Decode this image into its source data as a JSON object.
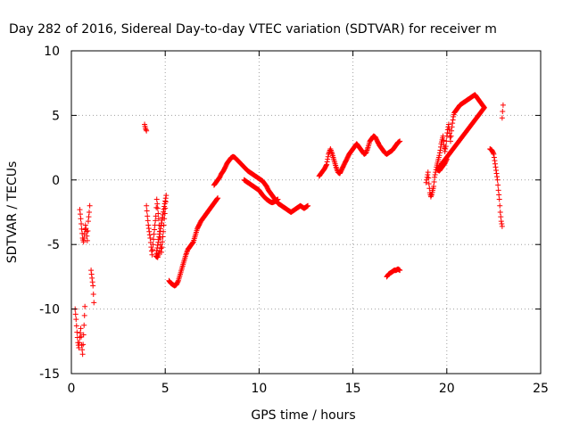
{
  "chart_data": {
    "type": "scatter",
    "title": "Day 282 of 2016, Sidereal Day-to-day VTEC variation (SDTVAR) for receiver m",
    "xlabel": "GPS time / hours",
    "ylabel": "SDTVAR / TECUs",
    "xlim": [
      0,
      25
    ],
    "ylim": [
      -15,
      10
    ],
    "xticks": [
      0,
      5,
      10,
      15,
      20,
      25
    ],
    "yticks": [
      -15,
      -10,
      -5,
      0,
      5,
      10
    ],
    "xtick_labels": [
      "0",
      "5",
      "10",
      "15",
      "20",
      "25"
    ],
    "ytick_labels": [
      "-15",
      "-10",
      "-5",
      "0",
      "5",
      "10"
    ],
    "grid": true,
    "marker": "plus",
    "color": "#ff0000",
    "segments": [
      [
        [
          0.2,
          -10.0
        ],
        [
          0.25,
          -10.8
        ],
        [
          0.3,
          -11.8
        ],
        [
          0.35,
          -12.6
        ],
        [
          0.4,
          -13.0
        ],
        [
          0.45,
          -12.2
        ],
        [
          0.5,
          -11.5
        ],
        [
          0.55,
          -12.8
        ],
        [
          0.6,
          -13.5
        ],
        [
          0.65,
          -12.0
        ],
        [
          0.7,
          -10.5
        ],
        [
          0.72,
          -9.8
        ]
      ],
      [
        [
          0.45,
          -2.3
        ],
        [
          0.5,
          -3.0
        ],
        [
          0.55,
          -3.8
        ],
        [
          0.6,
          -4.5
        ],
        [
          0.65,
          -4.8
        ],
        [
          0.7,
          -4.2
        ],
        [
          0.75,
          -3.5
        ],
        [
          0.8,
          -4.0
        ],
        [
          0.85,
          -4.7
        ],
        [
          0.9,
          -3.2
        ],
        [
          0.95,
          -2.5
        ],
        [
          0.98,
          -2.0
        ]
      ],
      [
        [
          1.05,
          -7.0
        ],
        [
          1.1,
          -7.6
        ],
        [
          1.15,
          -8.2
        ],
        [
          1.2,
          -9.5
        ]
      ],
      [
        [
          3.9,
          4.3
        ],
        [
          3.95,
          4.0
        ],
        [
          4.0,
          3.8
        ]
      ],
      [
        [
          4.0,
          -2.0
        ],
        [
          4.05,
          -2.8
        ],
        [
          4.1,
          -3.5
        ],
        [
          4.15,
          -4.0
        ],
        [
          4.2,
          -4.5
        ],
        [
          4.25,
          -5.2
        ],
        [
          4.3,
          -5.8
        ],
        [
          4.35,
          -5.0
        ],
        [
          4.4,
          -4.2
        ],
        [
          4.45,
          -3.5
        ],
        [
          4.5,
          -2.8
        ],
        [
          4.55,
          -1.5
        ],
        [
          4.6,
          -2.2
        ],
        [
          4.65,
          -3.0
        ],
        [
          4.7,
          -4.0
        ],
        [
          4.75,
          -5.0
        ],
        [
          4.8,
          -5.6
        ],
        [
          4.85,
          -4.8
        ],
        [
          4.9,
          -4.0
        ],
        [
          4.95,
          -3.0
        ],
        [
          5.0,
          -2.2
        ],
        [
          5.05,
          -1.2
        ],
        [
          4.5,
          -5.9
        ],
        [
          4.6,
          -6.0
        ],
        [
          4.7,
          -5.5
        ]
      ],
      [
        [
          5.2,
          -7.8
        ],
        [
          5.3,
          -8.0
        ],
        [
          5.4,
          -8.1
        ],
        [
          5.5,
          -8.2
        ],
        [
          5.6,
          -8.1
        ],
        [
          5.7,
          -7.8
        ],
        [
          5.8,
          -7.3
        ],
        [
          5.9,
          -6.8
        ],
        [
          6.0,
          -6.3
        ],
        [
          6.1,
          -5.8
        ],
        [
          6.2,
          -5.4
        ],
        [
          6.3,
          -5.2
        ],
        [
          6.4,
          -5.0
        ],
        [
          6.5,
          -4.8
        ],
        [
          6.6,
          -4.3
        ],
        [
          6.7,
          -3.8
        ],
        [
          6.8,
          -3.5
        ],
        [
          6.9,
          -3.2
        ],
        [
          7.0,
          -3.0
        ],
        [
          7.1,
          -2.8
        ],
        [
          7.2,
          -2.6
        ],
        [
          7.3,
          -2.4
        ],
        [
          7.4,
          -2.2
        ],
        [
          7.5,
          -2.0
        ],
        [
          7.6,
          -1.8
        ],
        [
          7.7,
          -1.6
        ],
        [
          7.8,
          -1.4
        ]
      ],
      [
        [
          7.6,
          -0.4
        ],
        [
          7.7,
          -0.2
        ],
        [
          7.8,
          0.0
        ],
        [
          7.9,
          0.2
        ],
        [
          8.0,
          0.5
        ],
        [
          8.1,
          0.7
        ],
        [
          8.2,
          1.0
        ],
        [
          8.3,
          1.3
        ],
        [
          8.4,
          1.5
        ],
        [
          8.5,
          1.7
        ],
        [
          8.6,
          1.8
        ],
        [
          8.7,
          1.75
        ],
        [
          8.8,
          1.6
        ],
        [
          8.9,
          1.45
        ],
        [
          9.0,
          1.3
        ],
        [
          9.1,
          1.15
        ],
        [
          9.2,
          1.0
        ],
        [
          9.3,
          0.85
        ],
        [
          9.4,
          0.7
        ],
        [
          9.5,
          0.6
        ],
        [
          9.6,
          0.5
        ],
        [
          9.7,
          0.4
        ],
        [
          9.8,
          0.3
        ],
        [
          9.9,
          0.2
        ],
        [
          10.0,
          0.1
        ],
        [
          10.1,
          0.0
        ],
        [
          10.2,
          -0.1
        ],
        [
          10.3,
          -0.3
        ],
        [
          10.4,
          -0.5
        ],
        [
          10.5,
          -0.8
        ],
        [
          10.6,
          -1.0
        ],
        [
          10.7,
          -1.2
        ],
        [
          10.8,
          -1.4
        ],
        [
          10.9,
          -1.6
        ],
        [
          11.0,
          -1.8
        ],
        [
          11.1,
          -1.9
        ],
        [
          11.2,
          -2.0
        ],
        [
          11.3,
          -2.1
        ],
        [
          11.4,
          -2.2
        ],
        [
          11.5,
          -2.3
        ],
        [
          11.6,
          -2.4
        ],
        [
          11.7,
          -2.5
        ],
        [
          11.8,
          -2.4
        ],
        [
          11.9,
          -2.3
        ],
        [
          12.0,
          -2.2
        ],
        [
          12.1,
          -2.1
        ],
        [
          12.2,
          -2.0
        ],
        [
          12.3,
          -2.1
        ],
        [
          12.4,
          -2.2
        ],
        [
          12.5,
          -2.1
        ],
        [
          12.6,
          -2.0
        ]
      ],
      [
        [
          9.2,
          0.0
        ],
        [
          9.3,
          -0.1
        ],
        [
          9.4,
          -0.2
        ],
        [
          9.5,
          -0.3
        ],
        [
          9.6,
          -0.4
        ],
        [
          9.7,
          -0.5
        ],
        [
          9.8,
          -0.6
        ],
        [
          9.9,
          -0.7
        ],
        [
          10.0,
          -0.8
        ],
        [
          10.1,
          -1.0
        ],
        [
          10.2,
          -1.2
        ],
        [
          10.3,
          -1.35
        ],
        [
          10.4,
          -1.5
        ],
        [
          10.5,
          -1.6
        ],
        [
          10.6,
          -1.7
        ],
        [
          10.7,
          -1.75
        ],
        [
          10.8,
          -1.7
        ],
        [
          10.9,
          -1.6
        ],
        [
          11.0,
          -1.5
        ]
      ],
      [
        [
          13.2,
          0.3
        ],
        [
          13.3,
          0.5
        ],
        [
          13.4,
          0.7
        ],
        [
          13.5,
          0.9
        ],
        [
          13.6,
          1.2
        ],
        [
          13.7,
          2.0
        ],
        [
          13.8,
          2.4
        ],
        [
          13.9,
          2.0
        ],
        [
          14.0,
          1.5
        ],
        [
          14.1,
          1.0
        ],
        [
          14.2,
          0.6
        ],
        [
          14.3,
          0.5
        ],
        [
          14.4,
          0.8
        ],
        [
          14.5,
          1.1
        ],
        [
          14.6,
          1.4
        ],
        [
          14.7,
          1.7
        ],
        [
          14.8,
          2.0
        ],
        [
          14.9,
          2.2
        ],
        [
          15.0,
          2.4
        ],
        [
          15.1,
          2.6
        ],
        [
          15.2,
          2.8
        ],
        [
          15.3,
          2.6
        ],
        [
          15.4,
          2.4
        ],
        [
          15.5,
          2.2
        ],
        [
          15.6,
          2.0
        ],
        [
          15.7,
          2.1
        ],
        [
          15.8,
          2.5
        ],
        [
          15.9,
          3.0
        ],
        [
          16.0,
          3.2
        ],
        [
          16.1,
          3.4
        ],
        [
          16.2,
          3.3
        ],
        [
          16.3,
          3.0
        ],
        [
          16.4,
          2.7
        ],
        [
          16.5,
          2.5
        ],
        [
          16.6,
          2.3
        ],
        [
          16.7,
          2.1
        ],
        [
          16.8,
          2.0
        ],
        [
          16.9,
          2.1
        ],
        [
          17.0,
          2.2
        ],
        [
          17.1,
          2.3
        ],
        [
          17.2,
          2.5
        ],
        [
          17.3,
          2.7
        ],
        [
          17.4,
          2.9
        ],
        [
          17.5,
          3.0
        ]
      ],
      [
        [
          16.8,
          -7.5
        ],
        [
          16.9,
          -7.3
        ],
        [
          17.0,
          -7.2
        ],
        [
          17.1,
          -7.1
        ],
        [
          17.2,
          -7.0
        ],
        [
          17.3,
          -7.0
        ],
        [
          17.4,
          -6.9
        ],
        [
          17.5,
          -7.0
        ]
      ],
      [
        [
          18.9,
          -0.2
        ],
        [
          18.95,
          0.2
        ],
        [
          19.0,
          0.6
        ],
        [
          19.05,
          -0.3
        ],
        [
          19.1,
          -1.0
        ],
        [
          19.15,
          -1.3
        ],
        [
          19.2,
          -1.1
        ],
        [
          19.25,
          -0.8
        ],
        [
          19.3,
          -0.5
        ],
        [
          19.35,
          0.2
        ],
        [
          19.4,
          0.6
        ],
        [
          19.45,
          1.0
        ],
        [
          19.5,
          1.3
        ],
        [
          19.55,
          1.6
        ],
        [
          19.6,
          1.9
        ],
        [
          19.65,
          2.3
        ],
        [
          19.7,
          2.8
        ],
        [
          19.75,
          3.1
        ],
        [
          19.8,
          3.4
        ],
        [
          19.85,
          2.7
        ],
        [
          19.9,
          2.2
        ],
        [
          19.95,
          2.6
        ],
        [
          20.0,
          3.4
        ],
        [
          20.05,
          3.9
        ],
        [
          20.1,
          4.3
        ],
        [
          20.15,
          3.6
        ],
        [
          20.2,
          3.0
        ],
        [
          20.25,
          3.8
        ],
        [
          20.3,
          4.4
        ],
        [
          20.35,
          4.9
        ],
        [
          20.4,
          5.2
        ],
        [
          20.5,
          5.4
        ],
        [
          20.6,
          5.6
        ],
        [
          20.7,
          5.8
        ],
        [
          20.8,
          5.9
        ],
        [
          20.9,
          6.0
        ],
        [
          21.0,
          6.1
        ],
        [
          21.1,
          6.2
        ],
        [
          21.2,
          6.3
        ],
        [
          21.3,
          6.4
        ],
        [
          21.4,
          6.5
        ],
        [
          21.5,
          6.6
        ],
        [
          21.6,
          6.4
        ],
        [
          21.7,
          6.2
        ],
        [
          21.8,
          6.0
        ],
        [
          21.9,
          5.8
        ],
        [
          22.0,
          5.6
        ],
        [
          19.5,
          0.8
        ],
        [
          19.6,
          0.7
        ],
        [
          19.7,
          0.9
        ],
        [
          19.8,
          1.1
        ],
        [
          19.9,
          1.3
        ],
        [
          20.0,
          1.6
        ]
      ],
      [
        [
          22.3,
          2.4
        ],
        [
          22.4,
          2.3
        ],
        [
          22.5,
          2.0
        ],
        [
          22.55,
          1.5
        ],
        [
          22.6,
          1.0
        ],
        [
          22.65,
          0.5
        ],
        [
          22.7,
          0.0
        ],
        [
          22.75,
          -0.8
        ],
        [
          22.8,
          -1.5
        ],
        [
          22.85,
          -2.5
        ],
        [
          22.9,
          -3.2
        ],
        [
          22.95,
          -3.6
        ]
      ],
      [
        [
          22.95,
          4.8
        ],
        [
          22.97,
          5.3
        ],
        [
          23.0,
          5.8
        ]
      ]
    ]
  }
}
